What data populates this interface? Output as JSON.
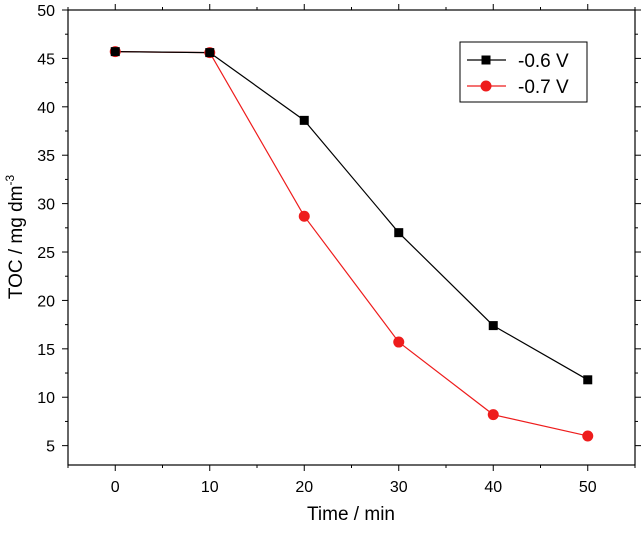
{
  "chart_data": {
    "type": "line",
    "title": "",
    "xlabel": "Time / min",
    "ylabel_main": "TOC / mg dm",
    "ylabel_sup": "-3",
    "xlim": [
      -5,
      55
    ],
    "ylim": [
      3,
      50
    ],
    "xticks": [
      0,
      10,
      20,
      30,
      40,
      50
    ],
    "xtick_labels": [
      "0",
      "10",
      "20",
      "30",
      "40",
      "50"
    ],
    "yticks": [
      5,
      10,
      15,
      20,
      25,
      30,
      35,
      40,
      45,
      50
    ],
    "ytick_labels": [
      "5",
      "10",
      "15",
      "20",
      "25",
      "30",
      "35",
      "40",
      "45",
      "50"
    ],
    "grid": false,
    "legend_position": "top-right",
    "x": [
      0,
      10,
      20,
      30,
      40,
      50
    ],
    "series": [
      {
        "name": "-0.6 V",
        "values": [
          45.7,
          45.6,
          38.6,
          27.0,
          17.4,
          11.8
        ],
        "color": "#000000",
        "marker": "square"
      },
      {
        "name": "-0.7 V",
        "values": [
          45.7,
          45.6,
          28.7,
          15.7,
          8.2,
          6.0
        ],
        "color": "#ee1c1c",
        "marker": "circle"
      }
    ]
  }
}
